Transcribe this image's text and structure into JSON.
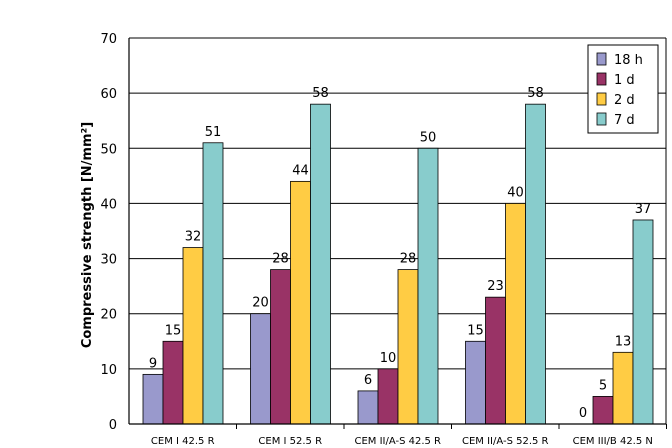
{
  "chart_data": {
    "type": "bar",
    "ylabel": "Compressive strength [N/mm²]",
    "ylim": [
      0,
      70
    ],
    "yticks": [
      0,
      10,
      20,
      30,
      40,
      50,
      60,
      70
    ],
    "grid": true,
    "legend_position": "top-right",
    "categories": [
      "CEM I 42.5 R",
      "CEM I 52.5 R",
      "CEM II/A-S 42.5 R",
      "CEM II/A-S 52.5 R",
      "CEM III/B 42.5 N"
    ],
    "series": [
      {
        "name": "18 h",
        "color": "#9999cc",
        "values": [
          9,
          20,
          6,
          15,
          0
        ]
      },
      {
        "name": "1 d",
        "color": "#993366",
        "values": [
          15,
          28,
          10,
          23,
          5
        ]
      },
      {
        "name": "2 d",
        "color": "#ffcc44",
        "values": [
          32,
          44,
          28,
          40,
          13
        ]
      },
      {
        "name": "7 d",
        "color": "#88cccc",
        "values": [
          51,
          58,
          50,
          58,
          37
        ]
      }
    ]
  }
}
